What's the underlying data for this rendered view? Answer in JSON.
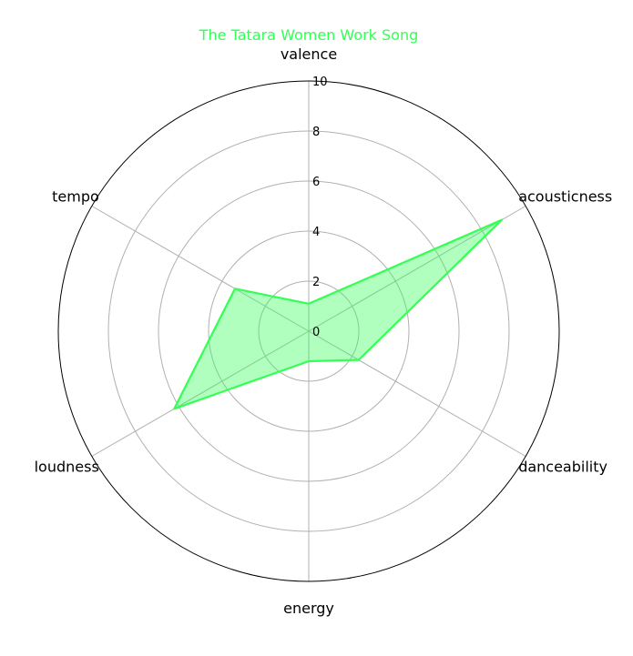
{
  "chart_data": {
    "type": "radar",
    "title": "The Tatara Women Work Song",
    "axes": [
      "valence",
      "acousticness",
      "danceability",
      "energy",
      "loudness",
      "tempo"
    ],
    "series": [
      {
        "values": [
          1.1,
          8.9,
          2.3,
          1.2,
          6.2,
          3.4
        ]
      }
    ],
    "rlim": [
      0,
      10
    ],
    "rticks": [
      0,
      2,
      4,
      6,
      8,
      10
    ],
    "grid": true,
    "colors": {
      "line": "#33ff55",
      "fill": "#33ff55",
      "fill_opacity": 0.38,
      "title": "#33ff55",
      "grid": "#b0b0b0",
      "outline": "#000000"
    }
  }
}
